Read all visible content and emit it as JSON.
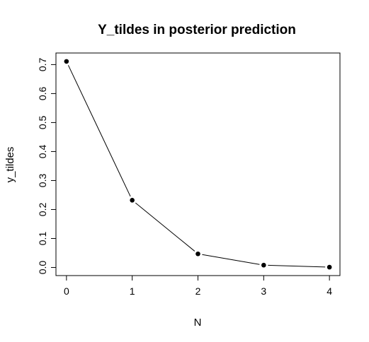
{
  "chart_data": {
    "type": "line",
    "title": "Y_tildes in posterior prediction",
    "xlabel": "N",
    "ylabel": "y_tildes",
    "x": [
      0,
      1,
      2,
      3,
      4
    ],
    "series": [
      {
        "values": [
          0.711,
          0.232,
          0.047,
          0.008,
          0.001
        ]
      }
    ],
    "xticks": [
      0,
      1,
      2,
      3,
      4
    ],
    "xtick_labels": [
      "0",
      "1",
      "2",
      "3",
      "4"
    ],
    "yticks": [
      0.0,
      0.1,
      0.2,
      0.3,
      0.4,
      0.5,
      0.6,
      0.7
    ],
    "ytick_labels": [
      "0.0",
      "0.1",
      "0.2",
      "0.3",
      "0.4",
      "0.5",
      "0.6",
      "0.7"
    ],
    "xlim": [
      -0.16,
      4.16
    ],
    "ylim": [
      -0.028,
      0.74
    ],
    "grid": false,
    "markers": "filled-circle",
    "line_color": "#000000",
    "marker_color": "#000000"
  }
}
